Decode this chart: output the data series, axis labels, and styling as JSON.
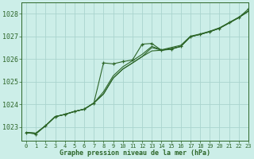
{
  "title": "Graphe pression niveau de la mer (hPa)",
  "bg_color": "#cceee8",
  "grid_color": "#aad4ce",
  "line_color": "#2d6629",
  "xlim": [
    -0.5,
    23
  ],
  "ylim": [
    1022.4,
    1028.5
  ],
  "yticks": [
    1023,
    1024,
    1025,
    1026,
    1027,
    1028
  ],
  "xticks": [
    0,
    1,
    2,
    3,
    4,
    5,
    6,
    7,
    8,
    9,
    10,
    11,
    12,
    13,
    14,
    15,
    16,
    17,
    18,
    19,
    20,
    21,
    22,
    23
  ],
  "series": [
    [
      1022.75,
      1022.72,
      1023.05,
      1023.45,
      1023.55,
      1023.68,
      1023.78,
      1024.05,
      1024.45,
      1025.15,
      1025.55,
      1025.82,
      1026.1,
      1026.35,
      1026.38,
      1026.45,
      1026.55,
      1026.98,
      1027.08,
      1027.2,
      1027.35,
      1027.58,
      1027.82,
      1028.1
    ],
    [
      1022.75,
      1022.72,
      1023.05,
      1023.45,
      1023.55,
      1023.68,
      1023.78,
      1024.05,
      1024.45,
      1025.15,
      1025.55,
      1025.82,
      1026.1,
      1026.5,
      1026.38,
      1026.45,
      1026.55,
      1026.98,
      1027.08,
      1027.2,
      1027.35,
      1027.58,
      1027.82,
      1028.1
    ],
    [
      1022.75,
      1022.72,
      1023.05,
      1023.45,
      1023.55,
      1023.68,
      1023.78,
      1024.05,
      1024.55,
      1025.25,
      1025.65,
      1025.92,
      1026.2,
      1026.55,
      1026.4,
      1026.5,
      1026.6,
      1027.0,
      1027.1,
      1027.22,
      1027.37,
      1027.6,
      1027.84,
      1028.12
    ]
  ],
  "main_series_x": [
    0,
    1,
    2,
    3,
    4,
    5,
    6,
    7,
    8,
    9,
    10,
    11,
    12,
    13,
    14,
    15,
    16,
    17,
    18,
    19,
    20,
    21,
    22,
    23
  ],
  "main_series": [
    1022.75,
    1022.68,
    1023.05,
    1023.45,
    1023.55,
    1023.68,
    1023.78,
    1024.05,
    1025.82,
    1025.78,
    1025.88,
    1025.95,
    1026.65,
    1026.68,
    1026.38,
    1026.42,
    1026.55,
    1026.98,
    1027.08,
    1027.2,
    1027.35,
    1027.6,
    1027.82,
    1028.2
  ]
}
